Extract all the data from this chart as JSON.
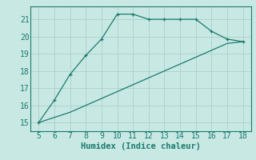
{
  "line1_x": [
    5,
    6,
    7,
    8,
    9,
    10,
    11,
    12,
    13,
    14,
    15,
    16,
    17,
    18
  ],
  "line1_y": [
    15.0,
    16.3,
    17.8,
    18.9,
    19.85,
    21.3,
    21.3,
    21.0,
    21.0,
    21.0,
    21.0,
    20.3,
    19.85,
    19.7
  ],
  "line2_x": [
    5,
    6,
    7,
    8,
    9,
    10,
    11,
    12,
    13,
    14,
    15,
    16,
    17,
    18
  ],
  "line2_y": [
    15.0,
    15.3,
    15.6,
    16.0,
    16.4,
    16.8,
    17.2,
    17.6,
    18.0,
    18.4,
    18.8,
    19.2,
    19.6,
    19.7
  ],
  "line_color": "#1a7a6e",
  "background_color": "#c8e8e4",
  "grid_color": "#aed4d0",
  "xlabel": "Humidex (Indice chaleur)",
  "xlabel_fontsize": 7.5,
  "tick_fontsize": 7,
  "xlim": [
    4.5,
    18.5
  ],
  "ylim": [
    14.5,
    21.75
  ],
  "xticks": [
    5,
    6,
    7,
    8,
    9,
    10,
    11,
    12,
    13,
    14,
    15,
    16,
    17,
    18
  ],
  "yticks": [
    15,
    16,
    17,
    18,
    19,
    20,
    21
  ]
}
